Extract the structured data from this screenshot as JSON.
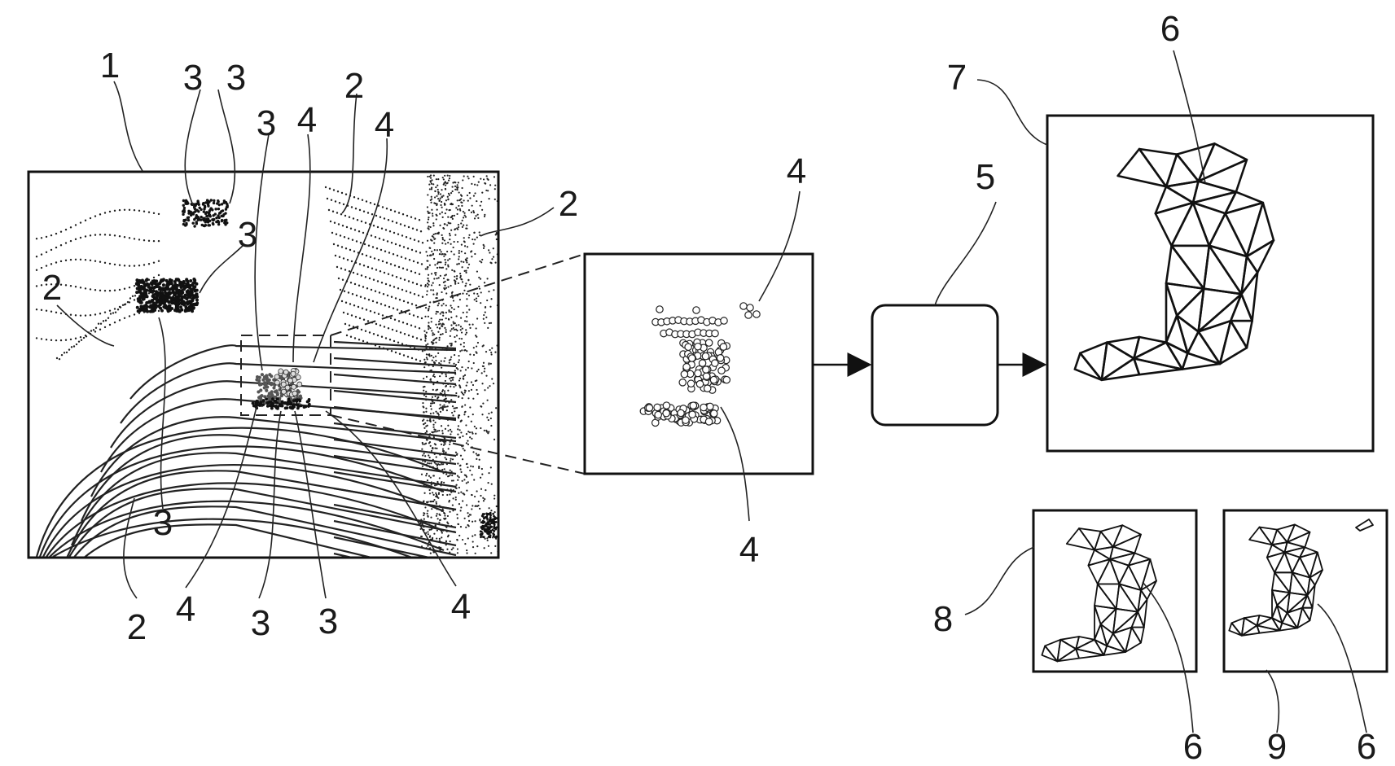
{
  "figure": {
    "labels": {
      "point_cloud_frame": "1",
      "ground_scan_lines": "2",
      "object_clusters": "3",
      "target_points": "4",
      "processing_unit": "5",
      "mesh_model": "6",
      "reconstruction_frame": "7",
      "candidate_frame_a": "8",
      "candidate_frame_b": "9"
    }
  }
}
